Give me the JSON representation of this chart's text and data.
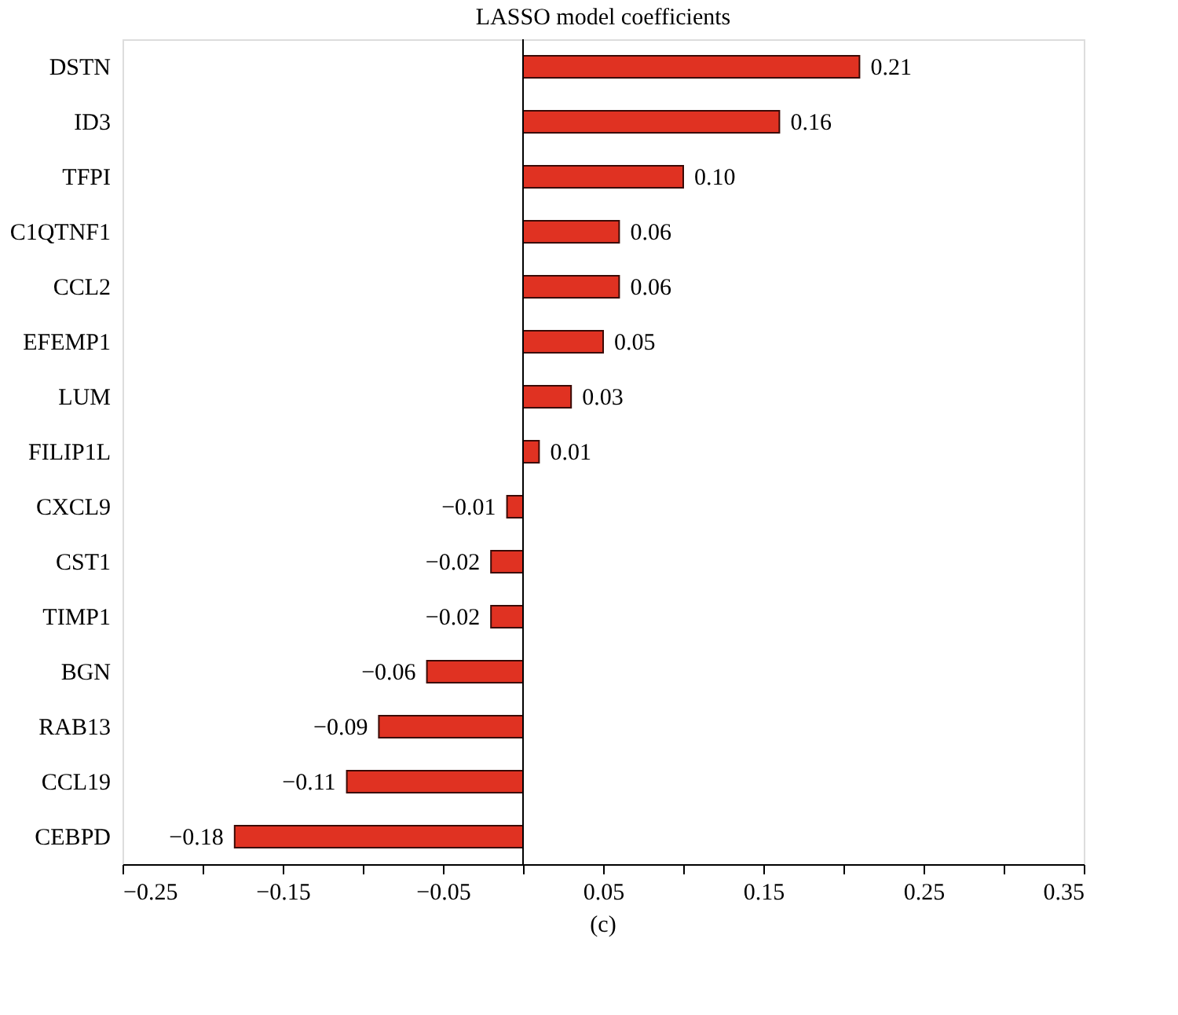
{
  "chart_data": {
    "type": "bar",
    "orientation": "horizontal",
    "title": "LASSO model coefficients",
    "categories": [
      "DSTN",
      "ID3",
      "TFPI",
      "C1QTNF1",
      "CCL2",
      "EFEMP1",
      "LUM",
      "FILIP1L",
      "CXCL9",
      "CST1",
      "TIMP1",
      "BGN",
      "RAB13",
      "CCL19",
      "CEBPD"
    ],
    "values": [
      0.21,
      0.16,
      0.1,
      0.06,
      0.06,
      0.05,
      0.03,
      0.01,
      -0.01,
      -0.02,
      -0.02,
      -0.06,
      -0.09,
      -0.11,
      -0.18
    ],
    "value_labels": [
      "0.21",
      "0.16",
      "0.10",
      "0.06",
      "0.06",
      "0.05",
      "0.03",
      "0.01",
      "−0.01",
      "−0.02",
      "−0.02",
      "−0.06",
      "−0.09",
      "−0.11",
      "−0.18"
    ],
    "color": "#e03222",
    "xlim": [
      -0.25,
      0.35
    ],
    "xticks": [
      -0.25,
      {
        "value": -0.2,
        "label": null
      },
      -0.15,
      {
        "value": -0.1,
        "label": null
      },
      -0.05,
      {
        "value": 0,
        "label": null
      },
      0.05,
      {
        "value": 0.1,
        "label": null
      },
      0.15,
      {
        "value": 0.2,
        "label": null
      },
      0.25,
      {
        "value": 0.3,
        "label": null
      },
      0.35
    ],
    "annotations": [
      "(c)"
    ]
  }
}
